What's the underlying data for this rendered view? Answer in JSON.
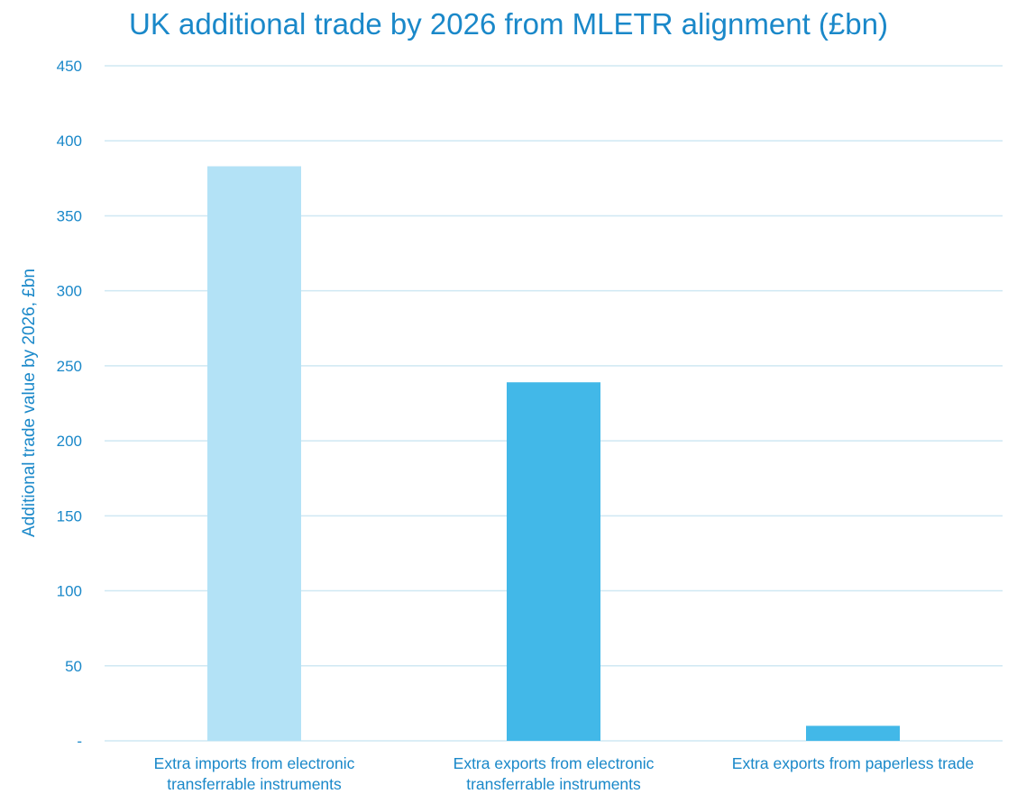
{
  "chart_data": {
    "type": "bar",
    "title": "UK additional trade by 2026 from MLETR alignment (£bn)",
    "xlabel": "",
    "ylabel": "Additional trade value by 2026, £bn",
    "categories": [
      [
        "Extra imports from electronic",
        "transferrable instruments"
      ],
      [
        "Extra exports from electronic",
        "transferrable instruments"
      ],
      [
        "Extra exports from paperless trade"
      ]
    ],
    "values": [
      383,
      239,
      10
    ],
    "bar_colors": [
      "#b3e2f6",
      "#42b8e8",
      "#42b8e8"
    ],
    "ylim": [
      0,
      450
    ],
    "yticks": [
      0,
      50,
      100,
      150,
      200,
      250,
      300,
      350,
      400,
      450
    ],
    "ytick_labels": [
      "-",
      "50",
      "100",
      "150",
      "200",
      "250",
      "300",
      "350",
      "400",
      "450"
    ],
    "grid": true,
    "legend": "none",
    "text_color": "#1a88c9",
    "grid_color": "#cfe8f3"
  }
}
